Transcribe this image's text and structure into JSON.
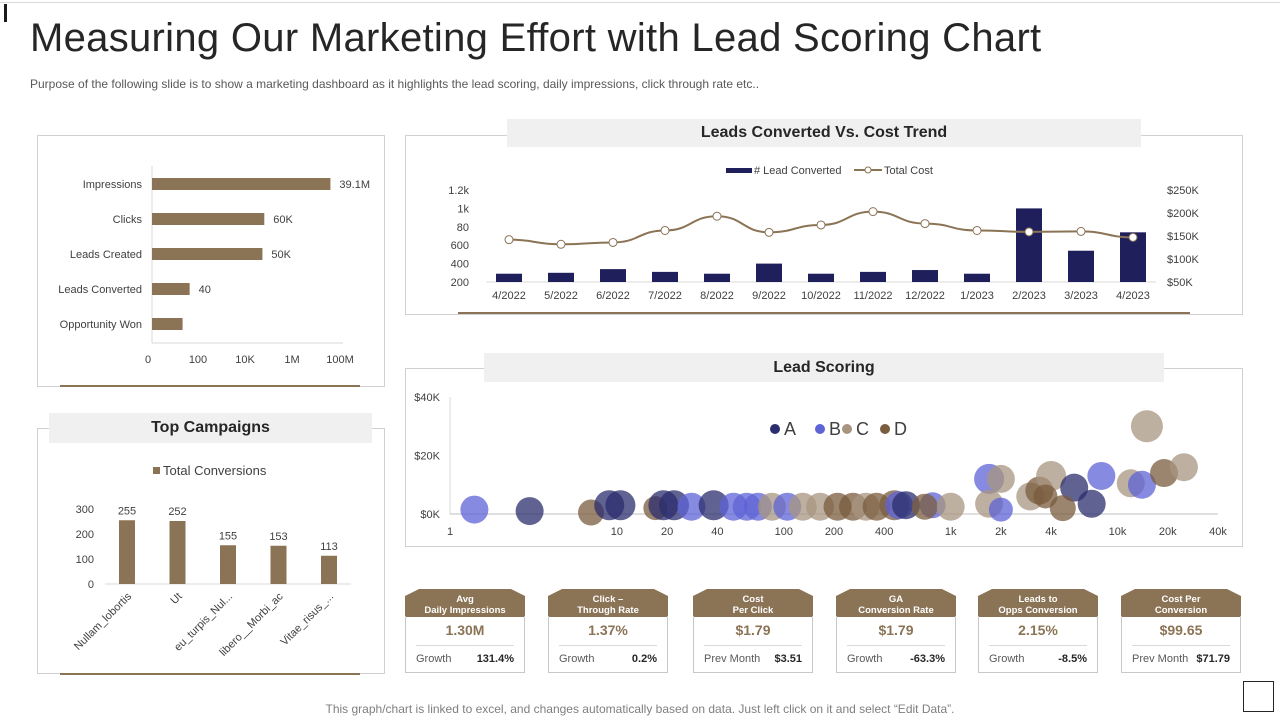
{
  "slide": {
    "title": "Measuring Our Marketing Effort with Lead Scoring Chart",
    "subtitle": "Purpose of the following slide is to show a marketing dashboard as it highlights the lead scoring, daily impressions, click through rate etc..",
    "footer": "This graph/chart is linked to excel, and changes automatically based on data. Just left click on it and select “Edit Data”."
  },
  "colors": {
    "brown": "#8b7355",
    "navy": "#1f1f5c",
    "a": "#2b2d6e",
    "b": "#5e63d6",
    "c": "#a89580",
    "d": "#7a5c3e"
  },
  "chart_data": [
    {
      "id": "funnel",
      "type": "bar",
      "orientation": "horizontal",
      "scale": "log",
      "categories": [
        "Impressions",
        "Clicks",
        "Leads Created",
        "Leads Converted",
        "Opportunity Won"
      ],
      "values": [
        39100000,
        60000,
        50000,
        40,
        20
      ],
      "data_labels": [
        "39.1M",
        "60K",
        "50K",
        "40",
        ""
      ],
      "x_ticks": [
        "0",
        "100",
        "10K",
        "1M",
        "100M"
      ]
    },
    {
      "id": "trend",
      "type": "bar",
      "title": "Leads Converted Vs. Cost Trend",
      "categories": [
        "4/2022",
        "5/2022",
        "6/2022",
        "7/2022",
        "8/2022",
        "9/2022",
        "10/2022",
        "11/2022",
        "12/2022",
        "1/2023",
        "2/2023",
        "3/2023",
        "4/2023"
      ],
      "series": [
        {
          "name": "# Lead Converted",
          "type": "bar",
          "axis": "left",
          "values": [
            290,
            300,
            340,
            310,
            290,
            400,
            290,
            310,
            330,
            290,
            1000,
            540,
            740
          ]
        },
        {
          "name": "Total Cost",
          "type": "line",
          "axis": "right",
          "values": [
            142000,
            132000,
            136000,
            162000,
            193000,
            158000,
            174000,
            203000,
            177000,
            162000,
            159000,
            160000,
            147000
          ]
        }
      ],
      "left_ticks": [
        "200",
        "400",
        "600",
        "80",
        "1k",
        "1.2k"
      ],
      "right_ticks": [
        "$50K",
        "$100K",
        "$150K",
        "$200K",
        "$250K"
      ],
      "ylim_left": [
        200,
        1200
      ],
      "ylim_right": [
        50000,
        250000
      ]
    },
    {
      "id": "lead_scoring",
      "type": "scatter",
      "title": "Lead Scoring",
      "x_scale": "log",
      "x_ticks": [
        "1",
        "10",
        "20",
        "40",
        "100",
        "200",
        "400",
        "1k",
        "2k",
        "4k",
        "10k",
        "20k",
        "40k"
      ],
      "y_ticks": [
        "$0K",
        "$20K",
        "$40K"
      ],
      "ylim": [
        0,
        40000
      ],
      "legend": [
        "A",
        "B",
        "C",
        "D"
      ],
      "points": [
        {
          "s": "B",
          "x": 1.4,
          "y": 1500,
          "r": 14
        },
        {
          "s": "A",
          "x": 3,
          "y": 1000,
          "r": 14
        },
        {
          "s": "D",
          "x": 7,
          "y": 500,
          "r": 13
        },
        {
          "s": "A",
          "x": 9,
          "y": 3000,
          "r": 15
        },
        {
          "s": "A",
          "x": 10.5,
          "y": 3000,
          "r": 15
        },
        {
          "s": "D",
          "x": 17,
          "y": 2000,
          "r": 12
        },
        {
          "s": "A",
          "x": 19,
          "y": 3000,
          "r": 15
        },
        {
          "s": "A",
          "x": 22,
          "y": 3000,
          "r": 15
        },
        {
          "s": "B",
          "x": 28,
          "y": 2500,
          "r": 14
        },
        {
          "s": "A",
          "x": 38,
          "y": 3000,
          "r": 15
        },
        {
          "s": "B",
          "x": 50,
          "y": 2500,
          "r": 14
        },
        {
          "s": "B",
          "x": 60,
          "y": 2500,
          "r": 14
        },
        {
          "s": "B",
          "x": 70,
          "y": 2500,
          "r": 14
        },
        {
          "s": "C",
          "x": 85,
          "y": 2500,
          "r": 14
        },
        {
          "s": "B",
          "x": 105,
          "y": 2500,
          "r": 14
        },
        {
          "s": "C",
          "x": 130,
          "y": 2500,
          "r": 14
        },
        {
          "s": "C",
          "x": 165,
          "y": 2500,
          "r": 14
        },
        {
          "s": "D",
          "x": 210,
          "y": 2500,
          "r": 14
        },
        {
          "s": "D",
          "x": 260,
          "y": 2500,
          "r": 14
        },
        {
          "s": "C",
          "x": 310,
          "y": 2500,
          "r": 14
        },
        {
          "s": "D",
          "x": 360,
          "y": 2500,
          "r": 14
        },
        {
          "s": "D",
          "x": 460,
          "y": 3000,
          "r": 15
        },
        {
          "s": "B",
          "x": 490,
          "y": 3000,
          "r": 14
        },
        {
          "s": "A",
          "x": 540,
          "y": 3000,
          "r": 14
        },
        {
          "s": "B",
          "x": 780,
          "y": 3000,
          "r": 13
        },
        {
          "s": "D",
          "x": 700,
          "y": 2500,
          "r": 13
        },
        {
          "s": "C",
          "x": 1000,
          "y": 2500,
          "r": 14
        },
        {
          "s": "B",
          "x": 1700,
          "y": 12000,
          "r": 15
        },
        {
          "s": "C",
          "x": 2000,
          "y": 12000,
          "r": 14
        },
        {
          "s": "C",
          "x": 1700,
          "y": 3500,
          "r": 14
        },
        {
          "s": "B",
          "x": 2000,
          "y": 1500,
          "r": 12
        },
        {
          "s": "C",
          "x": 3000,
          "y": 6000,
          "r": 14
        },
        {
          "s": "D",
          "x": 3400,
          "y": 8000,
          "r": 14
        },
        {
          "s": "C",
          "x": 4000,
          "y": 13000,
          "r": 15
        },
        {
          "s": "D",
          "x": 3700,
          "y": 6000,
          "r": 12
        },
        {
          "s": "A",
          "x": 5500,
          "y": 9000,
          "r": 14
        },
        {
          "s": "D",
          "x": 4700,
          "y": 2000,
          "r": 13
        },
        {
          "s": "A",
          "x": 7000,
          "y": 3500,
          "r": 14
        },
        {
          "s": "B",
          "x": 8000,
          "y": 13000,
          "r": 14
        },
        {
          "s": "C",
          "x": 12000,
          "y": 10500,
          "r": 14
        },
        {
          "s": "B",
          "x": 14000,
          "y": 10000,
          "r": 14
        },
        {
          "s": "C",
          "x": 15000,
          "y": 30000,
          "r": 16
        },
        {
          "s": "D",
          "x": 19000,
          "y": 14000,
          "r": 14
        },
        {
          "s": "C",
          "x": 25000,
          "y": 16000,
          "r": 14
        }
      ]
    },
    {
      "id": "campaigns",
      "type": "bar",
      "title": "Top Campaigns",
      "legend": "Total Conversions",
      "categories": [
        "Nullam_lobortis",
        "Ut",
        "eu_turpis_Nul...",
        "libero__Morbi_ac",
        "Vitae_risus_..."
      ],
      "values": [
        255,
        252,
        155,
        153,
        113
      ],
      "y_ticks": [
        "0",
        "100",
        "200",
        "300"
      ],
      "ylim": [
        0,
        300
      ]
    }
  ],
  "kpis": [
    {
      "title1": "Avg",
      "title2": "Daily Impressions",
      "value": "1.30M",
      "label": "Growth",
      "number": "131.4%"
    },
    {
      "title1": "Click –",
      "title2": "Through Rate",
      "value": "1.37%",
      "label": "Growth",
      "number": "0.2%"
    },
    {
      "title1": "Cost",
      "title2": "Per Click",
      "value": "$1.79",
      "label": "Prev Month",
      "number": "$3.51"
    },
    {
      "title1": "GA",
      "title2": "Conversion Rate",
      "value": "$1.79",
      "label": "Growth",
      "number": "-63.3%"
    },
    {
      "title1": "Leads to",
      "title2": "Opps Conversion",
      "value": "2.15%",
      "label": "Growth",
      "number": "-8.5%"
    },
    {
      "title1": "Cost Per",
      "title2": "Conversion",
      "value": "$99.65",
      "label": "Prev Month",
      "number": "$71.79"
    }
  ]
}
